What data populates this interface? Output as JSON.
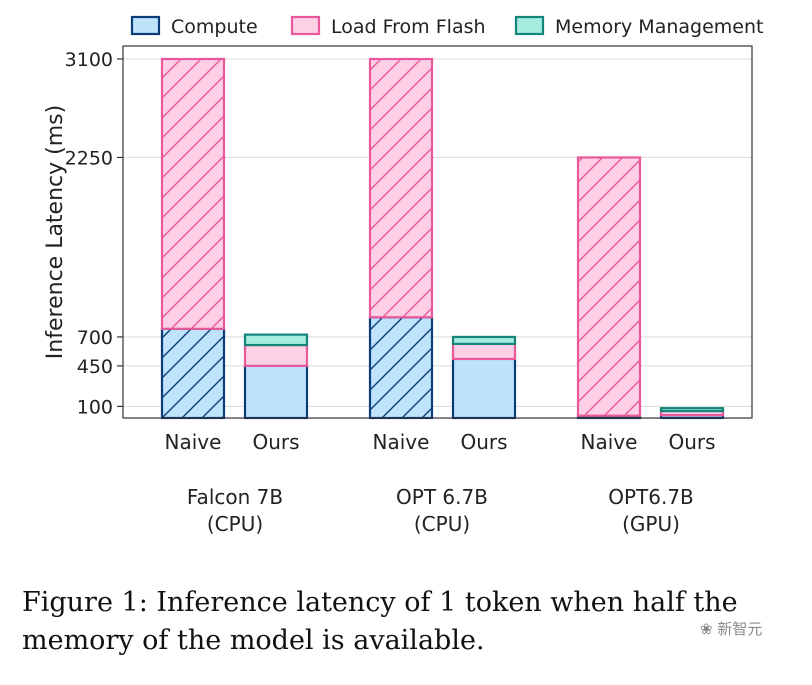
{
  "chart_data": {
    "type": "bar",
    "stacked": true,
    "ylabel": "Inference Latency (ms)",
    "yticks": [
      100,
      450,
      700,
      2250,
      3100
    ],
    "ylim": [
      0,
      3100
    ],
    "grid": true,
    "legend_position": "top",
    "groups": [
      {
        "name_line1": "Falcon 7B",
        "name_line2": "(CPU)"
      },
      {
        "name_line1": "OPT 6.7B",
        "name_line2": "(CPU)"
      },
      {
        "name_line1": "OPT6.7B",
        "name_line2": "(GPU)"
      }
    ],
    "bar_labels": [
      "Naive",
      "Ours",
      "Naive",
      "Ours",
      "Naive",
      "Ours"
    ],
    "series": [
      {
        "name": "Compute",
        "values": [
          770,
          450,
          870,
          510,
          20,
          25
        ],
        "color": "#bfe3fb",
        "edge": "#0b3e78"
      },
      {
        "name": "Load From Flash",
        "values": [
          2330,
          180,
          2230,
          130,
          2230,
          35
        ],
        "color": "#fdd0e6",
        "edge": "#e8589a"
      },
      {
        "name": "Memory Management",
        "values": [
          0,
          90,
          0,
          60,
          0,
          25
        ],
        "color": "#a6ece0",
        "edge": "#14857a"
      }
    ],
    "hatched": [
      true,
      false,
      true,
      false,
      true,
      false
    ]
  },
  "caption": "Figure 1: Inference latency of 1 token when half the memory of the model is available.",
  "watermark": "新智元"
}
